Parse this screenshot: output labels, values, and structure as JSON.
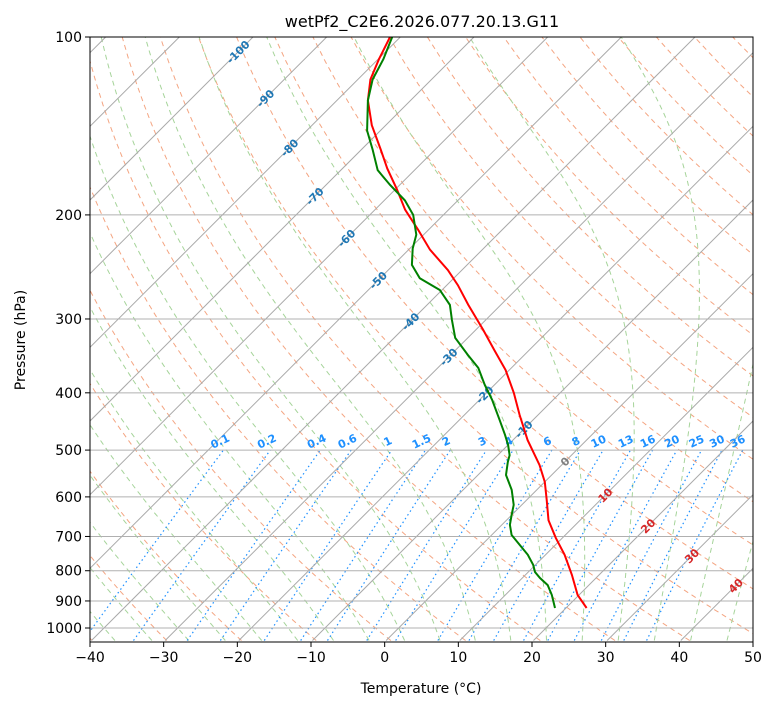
{
  "chart_data": {
    "type": "line",
    "subtype": "skew-t log-p",
    "title": "wetPf2_C2E6.2026.077.20.13.G11",
    "xlabel": "Temperature (°C)",
    "ylabel": "Pressure (hPa)",
    "xlim": [
      -40,
      50
    ],
    "ylim": [
      1050,
      100
    ],
    "x_ticks": [
      "−40",
      "−30",
      "−20",
      "−10",
      "0",
      "10",
      "20",
      "30",
      "40",
      "50"
    ],
    "x_tick_values": [
      -40,
      -30,
      -20,
      -10,
      0,
      10,
      20,
      30,
      40,
      50
    ],
    "y_ticks": [
      "100",
      "200",
      "300",
      "400",
      "500",
      "600",
      "700",
      "800",
      "900",
      "1000"
    ],
    "y_tick_values": [
      100,
      200,
      300,
      400,
      500,
      600,
      700,
      800,
      900,
      1000
    ],
    "grid": true,
    "colors": {
      "temperature": "#ff0000",
      "dewpoint": "#008000",
      "isotherm": "#a0a0a0",
      "dry_adiabat": "#f4a582",
      "moist_adiabat": "#a6d49a",
      "mixing_ratio": "#1e90ff",
      "neg_label": "#1f77b4",
      "zero_label": "#808080",
      "pos_label": "#d62728"
    },
    "series": [
      {
        "name": "Temperature",
        "pressure": [
          925,
          879,
          813,
          752,
          704,
          657,
          607,
          566,
          530,
          481,
          436,
          400,
          366,
          339,
          313,
          284,
          263,
          248,
          229,
          212,
          196,
          181,
          167,
          155,
          141,
          128,
          118,
          109,
          100
        ],
        "values": [
          22.8,
          19.8,
          16.3,
          12.6,
          9.1,
          5.7,
          2.7,
          0.0,
          -3.0,
          -8.0,
          -12.5,
          -16.3,
          -20.5,
          -24.7,
          -29.0,
          -34.4,
          -38.5,
          -41.9,
          -47.1,
          -51.4,
          -55.9,
          -59.8,
          -63.9,
          -67.4,
          -71.9,
          -75.8,
          -78.3,
          -79.9,
          -81.4
        ]
      },
      {
        "name": "Dewpoint",
        "pressure": [
          925,
          879,
          846,
          823,
          804,
          782,
          752,
          724,
          696,
          669,
          644,
          619,
          584,
          551,
          524,
          510,
          490,
          471,
          445,
          411,
          388,
          363,
          345,
          323,
          301,
          284,
          268,
          256,
          243,
          228,
          216,
          200,
          189,
          178,
          168,
          155,
          144,
          128,
          118,
          109,
          100
        ],
        "values": [
          18.5,
          16.3,
          14.4,
          12.4,
          10.9,
          9.7,
          7.6,
          5.2,
          2.7,
          1.1,
          0.0,
          -1.1,
          -3.4,
          -6.2,
          -7.7,
          -8.4,
          -10.0,
          -11.8,
          -14.5,
          -18.3,
          -21.3,
          -24.5,
          -27.7,
          -31.7,
          -34.6,
          -36.9,
          -40.3,
          -44.6,
          -47.5,
          -49.6,
          -51.0,
          -54.1,
          -57.2,
          -61.3,
          -65.0,
          -68.5,
          -71.8,
          -75.8,
          -78.0,
          -79.3,
          -81.1
        ]
      }
    ],
    "isotherm_labels": [
      {
        "text": "-100",
        "t": -100,
        "p": 106
      },
      {
        "text": "-90",
        "t": -90,
        "p": 127
      },
      {
        "text": "-80",
        "t": -80,
        "p": 154
      },
      {
        "text": "-70",
        "t": -70,
        "p": 186
      },
      {
        "text": "-60",
        "t": -60,
        "p": 219
      },
      {
        "text": "-50",
        "t": -50,
        "p": 258
      },
      {
        "text": "-40",
        "t": -40,
        "p": 303
      },
      {
        "text": "-30",
        "t": -30,
        "p": 348
      },
      {
        "text": "-20",
        "t": -20,
        "p": 403
      },
      {
        "text": "-10",
        "t": -10,
        "p": 461
      },
      {
        "text": "0",
        "t": 0,
        "p": 523
      },
      {
        "text": "10",
        "t": 10,
        "p": 596
      },
      {
        "text": "20",
        "t": 20,
        "p": 672
      },
      {
        "text": "30",
        "t": 30,
        "p": 755
      },
      {
        "text": "40",
        "t": 40,
        "p": 848
      }
    ],
    "mixing_ratio_labels": [
      "0.1",
      "0.2",
      "0.4",
      "0.6",
      "1",
      "1.5",
      "2",
      "3",
      "4",
      "6",
      "8",
      "10",
      "13",
      "16",
      "20",
      "25",
      "30",
      "36"
    ],
    "mixing_ratio_values": [
      0.1,
      0.2,
      0.4,
      0.6,
      1,
      1.5,
      2,
      3,
      4,
      6,
      8,
      10,
      13,
      16,
      20,
      25,
      30,
      36
    ]
  }
}
